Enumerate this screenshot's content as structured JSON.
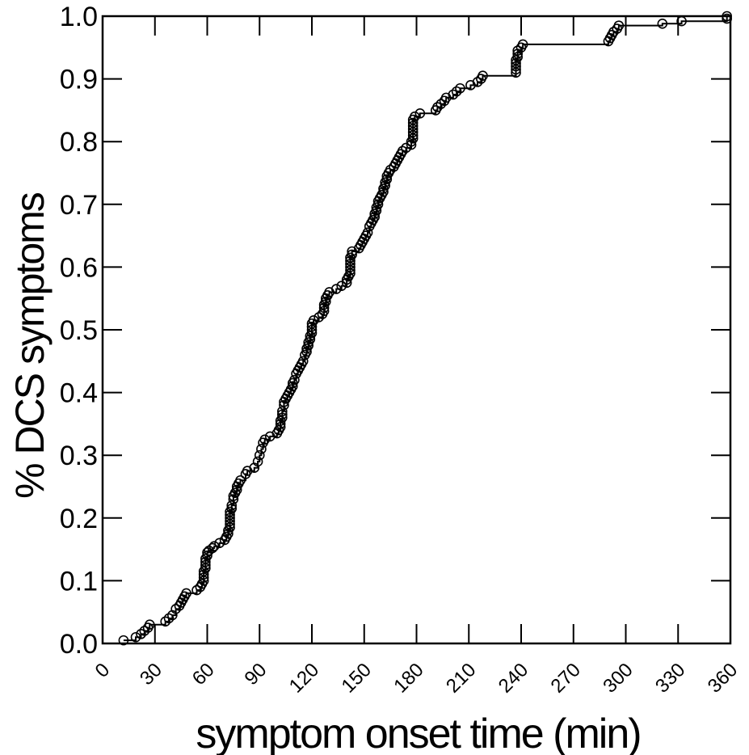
{
  "chart_data": {
    "type": "scatter",
    "title": "",
    "xlabel": "symptom onset time (min)",
    "ylabel": "% DCS symptoms",
    "xlim": [
      0,
      360
    ],
    "ylim": [
      0,
      1.0
    ],
    "xticks": [
      0,
      30,
      60,
      90,
      120,
      150,
      180,
      210,
      240,
      270,
      300,
      330,
      360
    ],
    "yticks": [
      0.0,
      0.1,
      0.2,
      0.3,
      0.4,
      0.5,
      0.6,
      0.7,
      0.8,
      0.9,
      1.0
    ],
    "xtick_labels": [
      "0",
      "30",
      "60",
      "90",
      "120",
      "150",
      "180",
      "210",
      "240",
      "270",
      "300",
      "330",
      "360"
    ],
    "ytick_labels": [
      "0.0",
      "0.1",
      "0.2",
      "0.3",
      "0.4",
      "0.5",
      "0.6",
      "0.7",
      "0.8",
      "0.9",
      "1.0"
    ],
    "grid": false,
    "series": [
      {
        "marker": "open-circle",
        "line": "step",
        "color": "#000000",
        "points": [
          [
            12,
            0.005
          ],
          [
            19,
            0.01
          ],
          [
            22,
            0.015
          ],
          [
            24,
            0.02
          ],
          [
            26,
            0.025
          ],
          [
            27,
            0.03
          ],
          [
            36,
            0.035
          ],
          [
            38,
            0.04
          ],
          [
            40,
            0.045
          ],
          [
            42,
            0.055
          ],
          [
            44,
            0.06
          ],
          [
            45,
            0.065
          ],
          [
            46,
            0.07
          ],
          [
            47,
            0.075
          ],
          [
            48,
            0.08
          ],
          [
            54,
            0.085
          ],
          [
            56,
            0.09
          ],
          [
            57,
            0.095
          ],
          [
            58,
            0.1
          ],
          [
            58,
            0.105
          ],
          [
            58,
            0.11
          ],
          [
            58,
            0.115
          ],
          [
            59,
            0.12
          ],
          [
            59,
            0.125
          ],
          [
            59,
            0.13
          ],
          [
            59,
            0.135
          ],
          [
            60,
            0.14
          ],
          [
            60,
            0.145
          ],
          [
            61,
            0.148
          ],
          [
            63,
            0.152
          ],
          [
            64,
            0.155
          ],
          [
            67,
            0.16
          ],
          [
            70,
            0.165
          ],
          [
            71,
            0.17
          ],
          [
            72,
            0.175
          ],
          [
            72,
            0.18
          ],
          [
            73,
            0.185
          ],
          [
            73,
            0.19
          ],
          [
            73,
            0.195
          ],
          [
            73,
            0.2
          ],
          [
            73,
            0.205
          ],
          [
            73,
            0.21
          ],
          [
            74,
            0.215
          ],
          [
            74,
            0.22
          ],
          [
            75,
            0.23
          ],
          [
            75,
            0.235
          ],
          [
            76,
            0.24
          ],
          [
            77,
            0.245
          ],
          [
            77,
            0.25
          ],
          [
            78,
            0.255
          ],
          [
            79,
            0.26
          ],
          [
            82,
            0.27
          ],
          [
            83,
            0.275
          ],
          [
            87,
            0.28
          ],
          [
            89,
            0.29
          ],
          [
            90,
            0.3
          ],
          [
            91,
            0.31
          ],
          [
            92,
            0.32
          ],
          [
            93,
            0.325
          ],
          [
            96,
            0.33
          ],
          [
            100,
            0.335
          ],
          [
            101,
            0.34
          ],
          [
            102,
            0.345
          ],
          [
            102,
            0.35
          ],
          [
            102,
            0.355
          ],
          [
            103,
            0.36
          ],
          [
            103,
            0.365
          ],
          [
            103,
            0.37
          ],
          [
            104,
            0.38
          ],
          [
            104,
            0.385
          ],
          [
            105,
            0.39
          ],
          [
            106,
            0.395
          ],
          [
            107,
            0.4
          ],
          [
            108,
            0.405
          ],
          [
            109,
            0.41
          ],
          [
            109,
            0.415
          ],
          [
            110,
            0.42
          ],
          [
            111,
            0.43
          ],
          [
            112,
            0.435
          ],
          [
            113,
            0.44
          ],
          [
            114,
            0.445
          ],
          [
            115,
            0.45
          ],
          [
            116,
            0.46
          ],
          [
            117,
            0.465
          ],
          [
            117,
            0.47
          ],
          [
            118,
            0.475
          ],
          [
            118,
            0.48
          ],
          [
            119,
            0.485
          ],
          [
            119,
            0.49
          ],
          [
            120,
            0.495
          ],
          [
            120,
            0.5
          ],
          [
            120,
            0.505
          ],
          [
            120,
            0.51
          ],
          [
            121,
            0.515
          ],
          [
            124,
            0.52
          ],
          [
            126,
            0.525
          ],
          [
            127,
            0.53
          ],
          [
            127,
            0.535
          ],
          [
            127,
            0.54
          ],
          [
            128,
            0.545
          ],
          [
            128,
            0.55
          ],
          [
            129,
            0.555
          ],
          [
            130,
            0.56
          ],
          [
            134,
            0.565
          ],
          [
            137,
            0.57
          ],
          [
            140,
            0.575
          ],
          [
            140,
            0.58
          ],
          [
            141,
            0.585
          ],
          [
            142,
            0.59
          ],
          [
            142,
            0.595
          ],
          [
            142,
            0.6
          ],
          [
            142,
            0.605
          ],
          [
            142,
            0.61
          ],
          [
            142,
            0.615
          ],
          [
            143,
            0.62
          ],
          [
            143,
            0.625
          ],
          [
            147,
            0.63
          ],
          [
            148,
            0.635
          ],
          [
            149,
            0.64
          ],
          [
            150,
            0.645
          ],
          [
            151,
            0.65
          ],
          [
            152,
            0.655
          ],
          [
            153,
            0.665
          ],
          [
            154,
            0.67
          ],
          [
            155,
            0.675
          ],
          [
            156,
            0.68
          ],
          [
            156,
            0.685
          ],
          [
            157,
            0.69
          ],
          [
            157,
            0.695
          ],
          [
            158,
            0.7
          ],
          [
            158,
            0.705
          ],
          [
            159,
            0.71
          ],
          [
            160,
            0.715
          ],
          [
            161,
            0.72
          ],
          [
            161,
            0.725
          ],
          [
            162,
            0.73
          ],
          [
            162,
            0.735
          ],
          [
            163,
            0.74
          ],
          [
            163,
            0.745
          ],
          [
            164,
            0.75
          ],
          [
            165,
            0.755
          ],
          [
            167,
            0.76
          ],
          [
            168,
            0.765
          ],
          [
            169,
            0.77
          ],
          [
            170,
            0.775
          ],
          [
            171,
            0.78
          ],
          [
            172,
            0.785
          ],
          [
            174,
            0.79
          ],
          [
            177,
            0.795
          ],
          [
            177,
            0.8
          ],
          [
            178,
            0.805
          ],
          [
            178,
            0.81
          ],
          [
            178,
            0.815
          ],
          [
            178,
            0.82
          ],
          [
            178,
            0.825
          ],
          [
            178,
            0.83
          ],
          [
            178,
            0.835
          ],
          [
            179,
            0.84
          ],
          [
            182,
            0.845
          ],
          [
            191,
            0.85
          ],
          [
            192,
            0.855
          ],
          [
            194,
            0.86
          ],
          [
            196,
            0.865
          ],
          [
            197,
            0.87
          ],
          [
            201,
            0.875
          ],
          [
            203,
            0.88
          ],
          [
            205,
            0.885
          ],
          [
            211,
            0.89
          ],
          [
            215,
            0.895
          ],
          [
            217,
            0.9
          ],
          [
            218,
            0.905
          ],
          [
            237,
            0.91
          ],
          [
            237,
            0.915
          ],
          [
            237,
            0.92
          ],
          [
            237,
            0.925
          ],
          [
            237,
            0.93
          ],
          [
            238,
            0.935
          ],
          [
            238,
            0.94
          ],
          [
            238,
            0.945
          ],
          [
            240,
            0.95
          ],
          [
            241,
            0.955
          ],
          [
            290,
            0.96
          ],
          [
            291,
            0.965
          ],
          [
            292,
            0.97
          ],
          [
            293,
            0.975
          ],
          [
            295,
            0.98
          ],
          [
            296,
            0.985
          ],
          [
            321,
            0.988
          ],
          [
            332,
            0.992
          ],
          [
            358,
            0.996
          ],
          [
            358,
            1.0
          ]
        ]
      }
    ]
  }
}
